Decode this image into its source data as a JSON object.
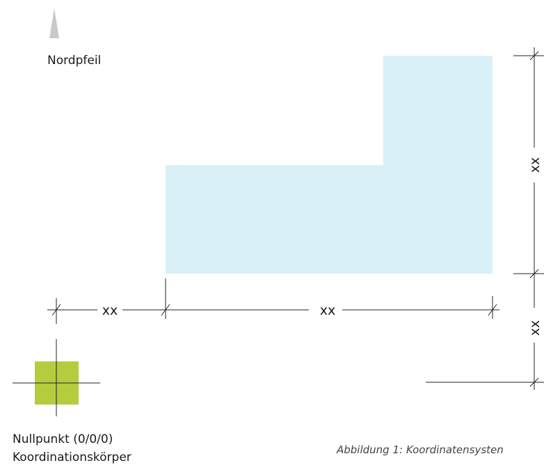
{
  "north_arrow": {
    "label": "Nordpfeil",
    "color": "#c6cacb"
  },
  "building": {
    "fill_color": "#d9f0f8"
  },
  "dimensions": {
    "offset_x_label": "xx",
    "building_width_label": "xx",
    "building_depth_label": "xx",
    "offset_y_label": "xx"
  },
  "origin": {
    "label_line1": "Nullpunkt (0/0/0)",
    "label_line2": "Koordinationskörper",
    "marker_color": "#b5cc3f"
  },
  "caption": "Abbildung 1: Koordinatensysten"
}
